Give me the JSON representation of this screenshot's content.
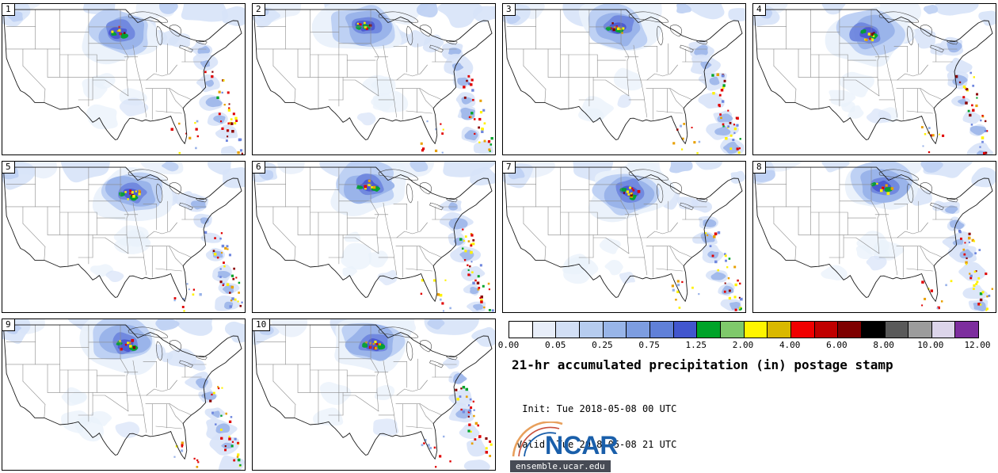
{
  "panels": [
    {
      "label": "1"
    },
    {
      "label": "2"
    },
    {
      "label": "3"
    },
    {
      "label": "4"
    },
    {
      "label": "5"
    },
    {
      "label": "6"
    },
    {
      "label": "7"
    },
    {
      "label": "8"
    },
    {
      "label": "9"
    },
    {
      "label": "10"
    }
  ],
  "colorbar": {
    "ticks": [
      "0.00",
      "0.05",
      "0.25",
      "0.75",
      "1.25",
      "2.00",
      "4.00",
      "6.00",
      "8.00",
      "10.00",
      "12.00"
    ],
    "colors": [
      "#FFFFFF",
      "#E8EEF9",
      "#D2DFF5",
      "#B6CCEF",
      "#98B5E8",
      "#7D9DE0",
      "#6080D8",
      "#4256CE",
      "#00A329",
      "#7FC96B",
      "#FFF500",
      "#D9B800",
      "#F00000",
      "#C00000",
      "#7E0000",
      "#000000",
      "#5A5A5A",
      "#9C9C9C",
      "#DCD5EA",
      "#7D2E9E"
    ]
  },
  "title": "21-hr accumulated precipitation (in) postage stamp",
  "init_line": " Init: Tue 2018-05-08 00 UTC",
  "valid_line": "Valid: Tue 2018-05-08 21 UTC",
  "logo": {
    "text": "NCAR",
    "url_label": "ensemble.ucar.edu",
    "brand_color": "#1A5FAA"
  }
}
